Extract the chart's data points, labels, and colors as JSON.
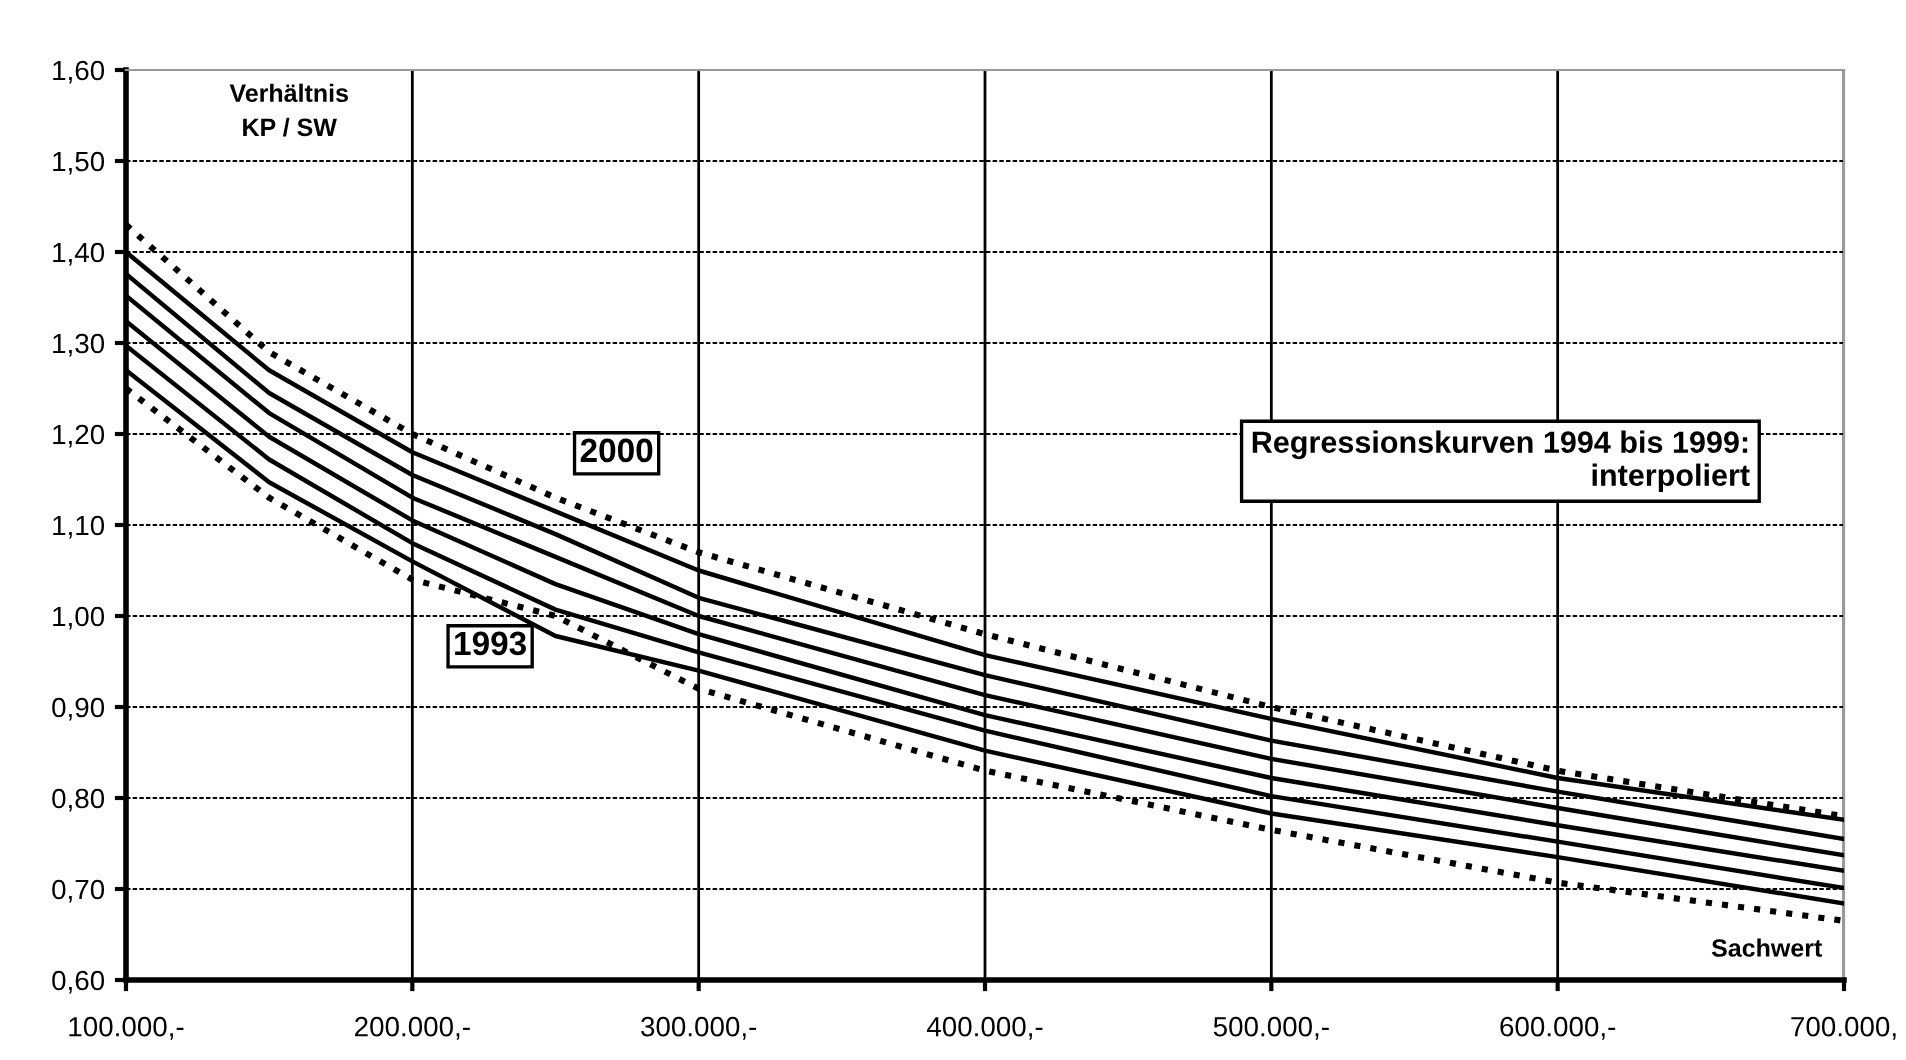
{
  "chart_data": {
    "type": "line",
    "xlabel": "Sachwert",
    "ylabel": "Verhältnis\nKP / SW",
    "x": [
      100000,
      150000,
      200000,
      250000,
      300000,
      400000,
      500000,
      600000,
      700000
    ],
    "series": [
      {
        "color": "#000000",
        "line_style": "dotted",
        "values": [
          1.43,
          1.29,
          1.2,
          1.13,
          1.07,
          0.98,
          0.9,
          0.83,
          0.78
        ]
      },
      {
        "color": "#000000",
        "line_style": "solid",
        "values": [
          1.4,
          1.27,
          1.18,
          1.115,
          1.05,
          0.957,
          0.887,
          0.822,
          0.776
        ]
      },
      {
        "color": "#000000",
        "line_style": "solid",
        "values": [
          1.376,
          1.245,
          1.155,
          1.09,
          1.02,
          0.935,
          0.863,
          0.807,
          0.755
        ]
      },
      {
        "color": "#000000",
        "line_style": "solid",
        "values": [
          1.352,
          1.223,
          1.13,
          1.065,
          1.0,
          0.913,
          0.843,
          0.789,
          0.737
        ]
      },
      {
        "color": "#000000",
        "line_style": "solid",
        "values": [
          1.324,
          1.197,
          1.105,
          1.035,
          0.98,
          0.891,
          0.822,
          0.77,
          0.72
        ]
      },
      {
        "color": "#000000",
        "line_style": "solid",
        "values": [
          1.297,
          1.172,
          1.08,
          1.007,
          0.96,
          0.874,
          0.802,
          0.752,
          0.701
        ]
      },
      {
        "color": "#000000",
        "line_style": "solid",
        "values": [
          1.27,
          1.147,
          1.06,
          0.978,
          0.94,
          0.852,
          0.783,
          0.735,
          0.684
        ]
      },
      {
        "color": "#000000",
        "line_style": "dotted",
        "values": [
          1.25,
          1.13,
          1.04,
          1.0,
          0.92,
          0.83,
          0.765,
          0.707,
          0.665
        ]
      }
    ],
    "annotations": [
      {
        "text": "2000",
        "x": 250000,
        "y": 1.13
      },
      {
        "text": "1993",
        "x": 200000,
        "y": 1.04
      },
      "Regressionskurven 1994 bis 1999:\ninterpoliert"
    ],
    "xlim": [
      100000,
      700000
    ],
    "ylim": [
      0.6,
      1.6
    ],
    "xticks": [
      {
        "value": 100000,
        "label": "100.000,-"
      },
      {
        "value": 200000,
        "label": "200.000,-"
      },
      {
        "value": 300000,
        "label": "300.000,-"
      },
      {
        "value": 400000,
        "label": "400.000,-"
      },
      {
        "value": 500000,
        "label": "500.000,-"
      },
      {
        "value": 600000,
        "label": "600.000,-"
      },
      {
        "value": 700000,
        "label": "700.000,"
      }
    ],
    "yticks": [
      {
        "value": 0.6,
        "label": "0,60"
      },
      {
        "value": 0.7,
        "label": "0,70"
      },
      {
        "value": 0.8,
        "label": "0,80"
      },
      {
        "value": 0.9,
        "label": "0,90"
      },
      {
        "value": 1.0,
        "label": "1,00"
      },
      {
        "value": 1.1,
        "label": "1,10"
      },
      {
        "value": 1.2,
        "label": "1,20"
      },
      {
        "value": 1.3,
        "label": "1,30"
      },
      {
        "value": 1.4,
        "label": "1,40"
      },
      {
        "value": 1.5,
        "label": "1,50"
      },
      {
        "value": 1.6,
        "label": "1,60"
      }
    ],
    "grid": true,
    "marker": "none"
  }
}
